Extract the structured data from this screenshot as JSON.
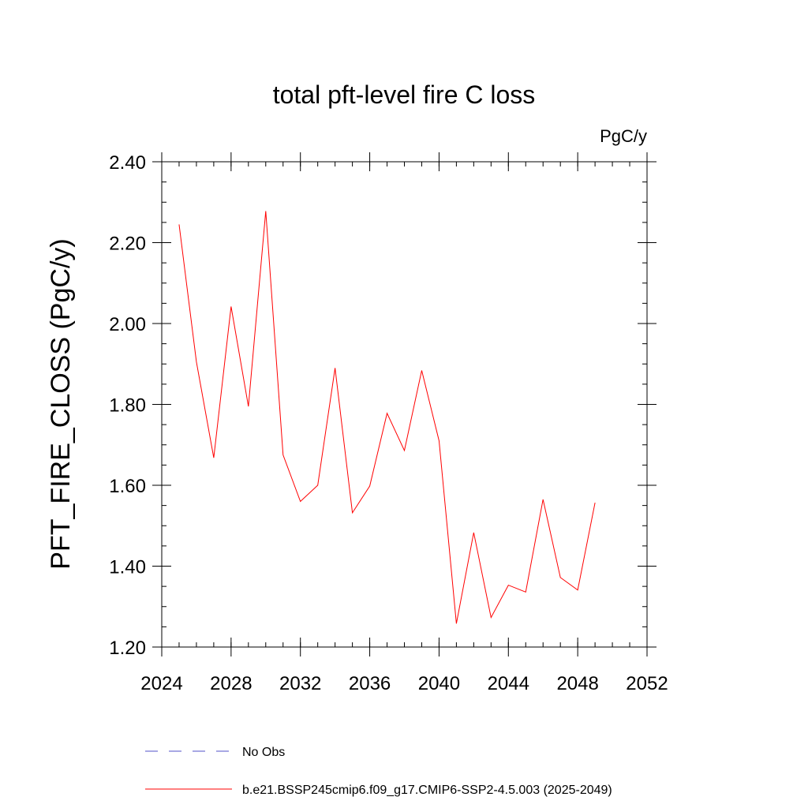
{
  "chart_data": {
    "type": "line",
    "title": "total pft-level fire C loss",
    "units_label": "PgC/y",
    "ylabel": "PFT_FIRE_CLOSS  (PgC/y)",
    "xlabel": "",
    "xlim": [
      2024,
      2052
    ],
    "ylim": [
      1.2,
      2.4
    ],
    "x_ticks": [
      "2024",
      "2028",
      "2032",
      "2036",
      "2040",
      "2044",
      "2048",
      "2052"
    ],
    "y_ticks": [
      "1.20",
      "1.40",
      "1.60",
      "1.80",
      "2.00",
      "2.20",
      "2.40"
    ],
    "grid": false,
    "series": [
      {
        "name": "b.e21.BSSP245cmip6.f09_g17.CMIP6-SSP2-4.5.003 (2025-2049)",
        "color": "#ff0000",
        "style": "solid",
        "x": [
          2025,
          2026,
          2027,
          2028,
          2029,
          2030,
          2031,
          2032,
          2033,
          2034,
          2035,
          2036,
          2037,
          2038,
          2039,
          2040,
          2041,
          2042,
          2043,
          2044,
          2045,
          2046,
          2047,
          2048,
          2049
        ],
        "values": [
          2.245,
          1.905,
          1.668,
          2.042,
          1.795,
          2.278,
          1.675,
          1.56,
          1.6,
          1.89,
          1.532,
          1.598,
          1.778,
          1.686,
          1.884,
          1.71,
          1.258,
          1.483,
          1.273,
          1.353,
          1.336,
          1.565,
          1.372,
          1.341,
          1.557
        ]
      }
    ],
    "legend": [
      {
        "label": "No Obs",
        "color": "#5050c8",
        "style": "dashed"
      },
      {
        "label": "b.e21.BSSP245cmip6.f09_g17.CMIP6-SSP2-4.5.003 (2025-2049)",
        "color": "#ff0000",
        "style": "solid"
      }
    ]
  }
}
